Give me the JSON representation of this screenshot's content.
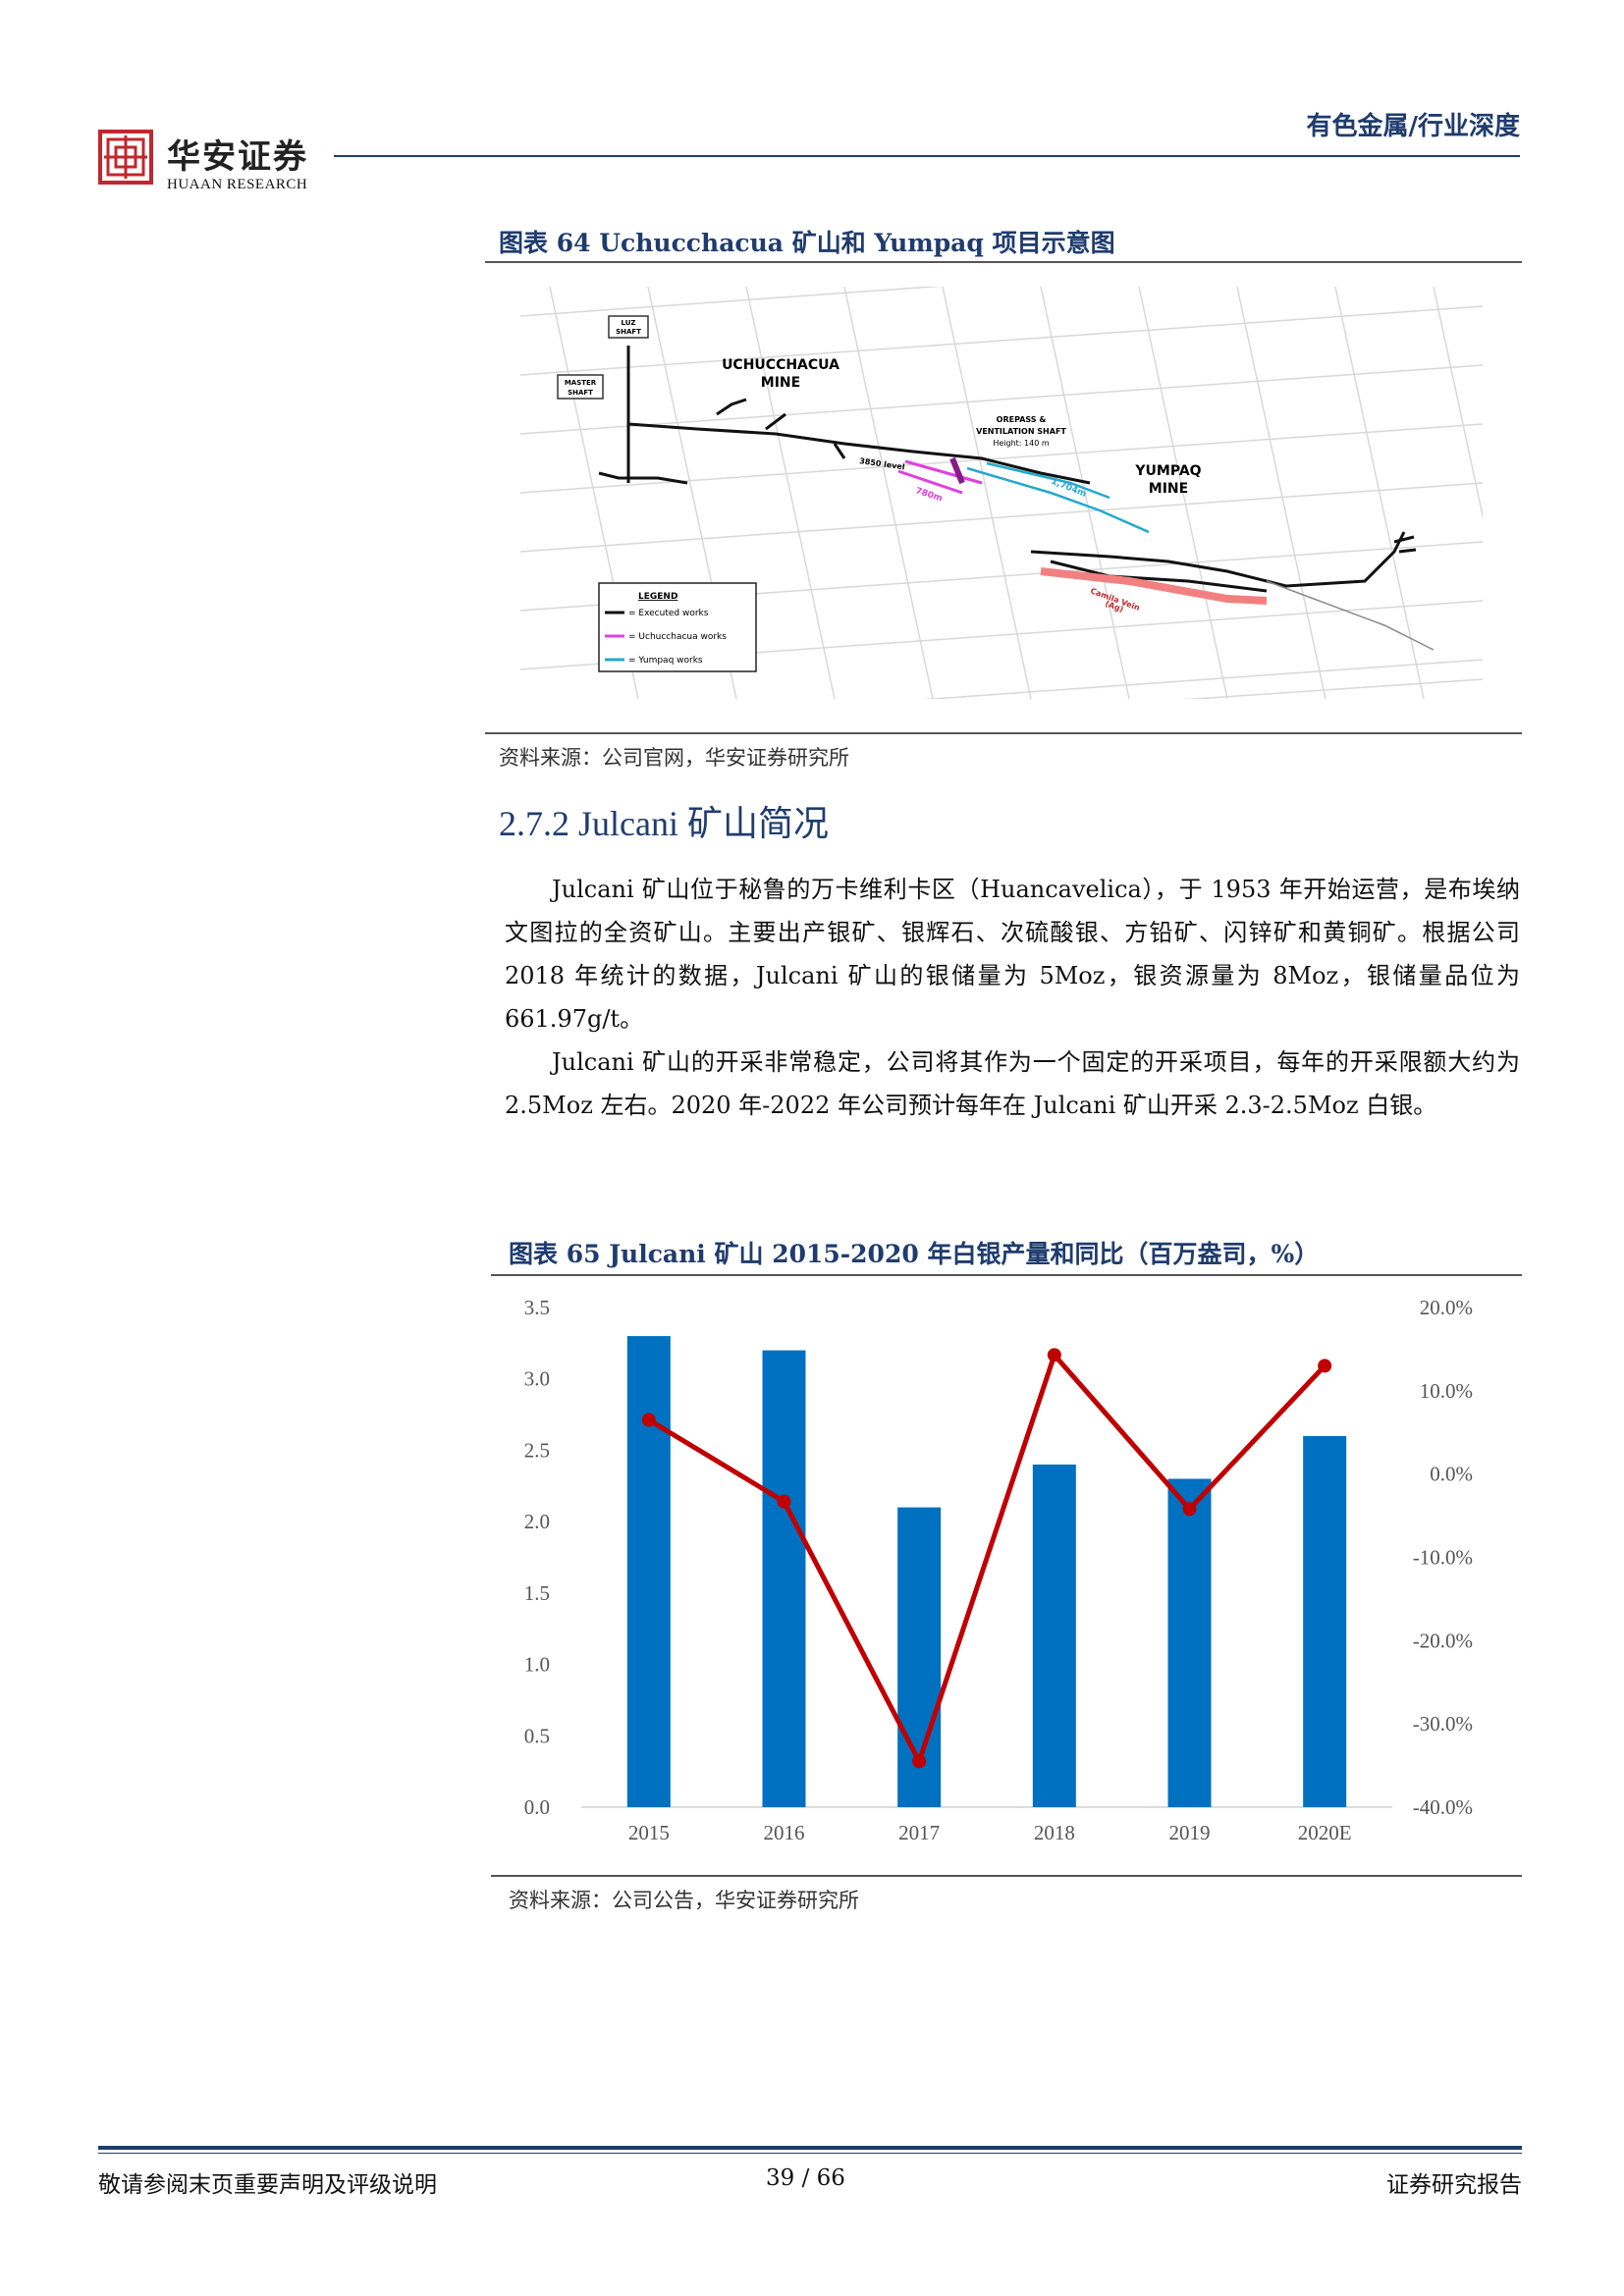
{
  "header": {
    "brand_cn": "华安证券",
    "brand_en": "HUAAN RESEARCH",
    "category": "有色金属/行业深度"
  },
  "figure64": {
    "title": "图表 64 Uchucchacua 矿山和 Yumpaq 项目示意图",
    "source": "资料来源：公司官网，华安证券研究所",
    "labels": {
      "luz_shaft_1": "LUZ",
      "luz_shaft_2": "SHAFT",
      "master_shaft_1": "MASTER",
      "master_shaft_2": "SHAFT",
      "uchucchacua_1": "UCHUCCHACUA",
      "uchucchacua_2": "MINE",
      "orepass_1": "OREPASS &",
      "orepass_2": "VENTILATION SHAFT",
      "orepass_3": "Height: 140 m",
      "level": "3850 level",
      "dist_pink": "780m",
      "dist_cyan": "1,704m",
      "yumpaq_1": "YUMPAQ",
      "yumpaq_2": "MINE",
      "vein_1": "Camila Vein",
      "vein_2": "(Ag)",
      "legend_title": "LEGEND",
      "legend_executed": "= Executed works",
      "legend_uchucchacua": "= Uchucchacua works",
      "legend_yumpaq": "= Yumpaq works"
    },
    "colors": {
      "executed": "#000000",
      "uchucchacua": "#e040e0",
      "yumpaq": "#22aacc",
      "vein": "#f28080"
    }
  },
  "section": {
    "heading": "2.7.2 Julcani 矿山简况",
    "p1": "Julcani 矿山位于秘鲁的万卡维利卡区（Huancavelica），于 1953 年开始运营，是布埃纳文图拉的全资矿山。主要出产银矿、银辉石、次硫酸银、方铅矿、闪锌矿和黄铜矿。根据公司 2018 年统计的数据，Julcani 矿山的银储量为 5Moz，银资源量为 8Moz，银储量品位为 661.97g/t。",
    "p2": "Julcani 矿山的开采非常稳定，公司将其作为一个固定的开采项目，每年的开采限额大约为 2.5Moz 左右。2020 年-2022 年公司预计每年在 Julcani 矿山开采 2.3-2.5Moz 白银。"
  },
  "figure65": {
    "title": "图表 65 Julcani 矿山 2015-2020 年白银产量和同比（百万盎司，%）",
    "source": "资料来源：公司公告，华安证券研究所"
  },
  "chart_data": {
    "type": "bar",
    "categories": [
      "2015",
      "2016",
      "2017",
      "2018",
      "2019",
      "2020E"
    ],
    "series": [
      {
        "type": "bar",
        "values": [
          3.3,
          3.2,
          2.1,
          2.4,
          2.3,
          2.6
        ],
        "color": "#0070c0",
        "axis": "left"
      },
      {
        "type": "line",
        "values": [
          6.5,
          -3.3,
          -34.5,
          14.3,
          -4.2,
          13.0
        ],
        "color": "#c00000",
        "axis": "right"
      }
    ],
    "y_left": {
      "min": 0,
      "max": 3.5,
      "ticks": [
        "0.0",
        "0.5",
        "1.0",
        "1.5",
        "2.0",
        "2.5",
        "3.0",
        "3.5"
      ]
    },
    "y_right": {
      "min": -40,
      "max": 20,
      "ticks": [
        "-40.0%",
        "-30.0%",
        "-20.0%",
        "-10.0%",
        "0.0%",
        "10.0%",
        "20.0%"
      ]
    },
    "grid": false
  },
  "footer": {
    "left": "敬请参阅末页重要声明及评级说明",
    "page": "39  /  66",
    "right": "证券研究报告"
  }
}
